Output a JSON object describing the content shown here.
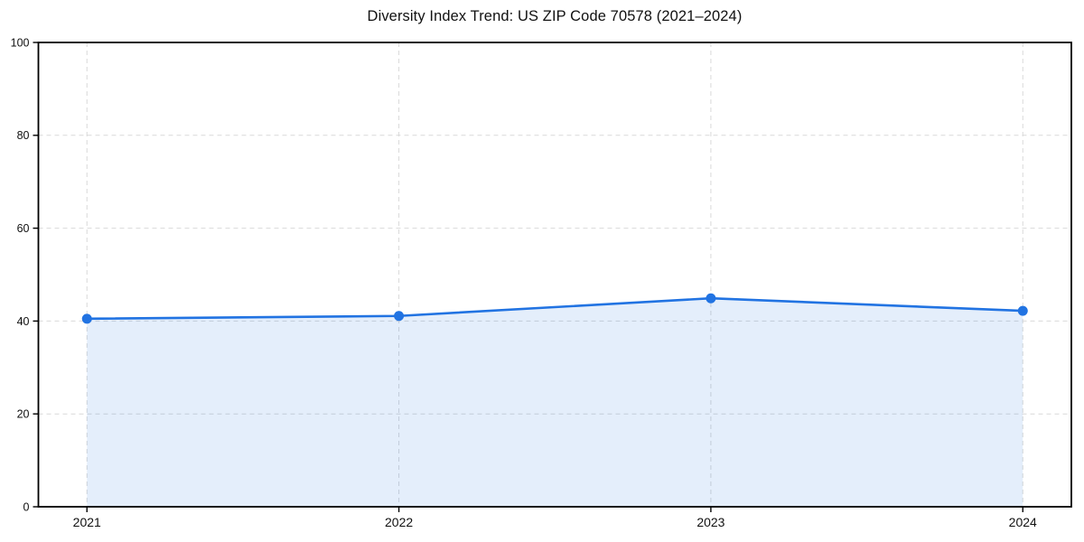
{
  "title": "Diversity Index Trend: US ZIP Code 70578 (2021–2024)",
  "chart_data": {
    "type": "line",
    "title": "Diversity Index Trend: US ZIP Code 70578 (2021–2024)",
    "x": [
      2021,
      2022,
      2023,
      2024
    ],
    "xticklabels": [
      "2021",
      "2022",
      "2023",
      "2024"
    ],
    "series": [
      {
        "name": "Diversity Index",
        "values": [
          40.5,
          41.1,
          44.9,
          42.2
        ]
      }
    ],
    "xlabel": "",
    "ylabel": "",
    "ylim": [
      0,
      100
    ],
    "yticks": [
      0,
      20,
      40,
      60,
      80,
      100
    ],
    "grid": true,
    "grid_style": "dashed",
    "legend": "none",
    "area_fill": true,
    "colors": {
      "line": "#2173e2",
      "marker": "#2173e2",
      "fill": "#2173e2",
      "fill_opacity": 0.12,
      "grid": "#d9d9d9",
      "spine": "#000000",
      "tick_text": "#111111",
      "background": "#ffffff"
    }
  }
}
